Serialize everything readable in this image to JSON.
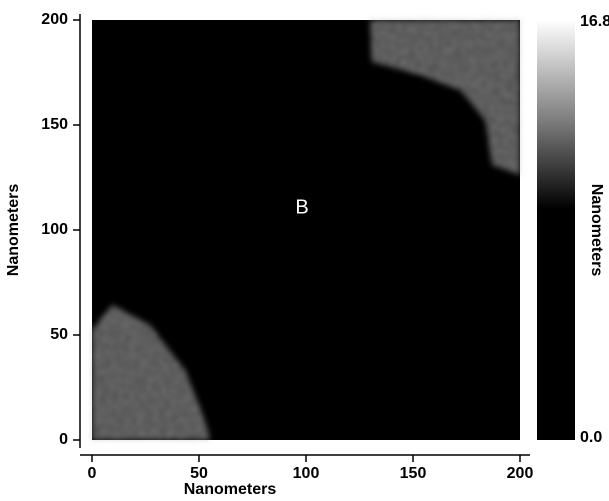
{
  "chart_data": {
    "type": "image",
    "annotation": "B",
    "xlabel": "Nanometers",
    "ylabel": "Nanometers",
    "colorbar_label": "Nanometers",
    "xlim": [
      0,
      200
    ],
    "ylim": [
      0,
      200
    ],
    "xticks": [
      0,
      50,
      100,
      150,
      200
    ],
    "yticks": [
      0,
      50,
      100,
      150,
      200
    ],
    "clim": [
      0,
      16.8
    ],
    "cticks": [
      {
        "value": 0,
        "label": "0.0"
      },
      16.8
    ]
  }
}
